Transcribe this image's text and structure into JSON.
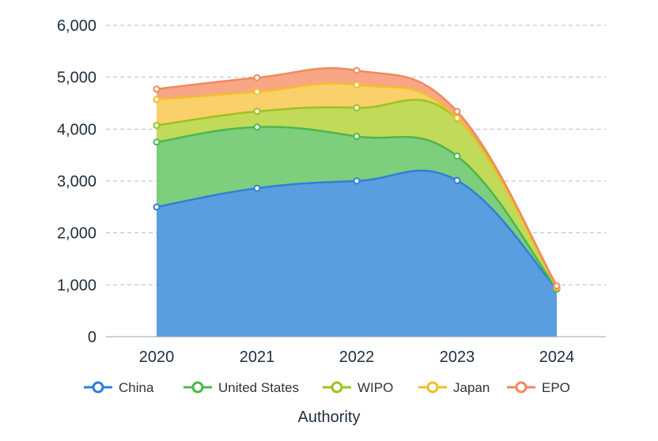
{
  "chart_data": {
    "type": "area",
    "stacked": true,
    "categories": [
      "2020",
      "2021",
      "2022",
      "2023",
      "2024"
    ],
    "series": [
      {
        "name": "China",
        "values": [
          2500,
          2860,
          3000,
          3010,
          920
        ]
      },
      {
        "name": "United States",
        "values": [
          1250,
          1180,
          860,
          470,
          0
        ]
      },
      {
        "name": "WIPO",
        "values": [
          320,
          300,
          550,
          720,
          20
        ]
      },
      {
        "name": "Japan",
        "values": [
          500,
          380,
          440,
          10,
          10
        ]
      },
      {
        "name": "EPO",
        "values": [
          200,
          270,
          280,
          130,
          30
        ]
      }
    ],
    "colors": {
      "China": {
        "line": "#2f7fd8",
        "fill": "#5a9ee0"
      },
      "United States": {
        "line": "#4cb84c",
        "fill": "#7dce7d"
      },
      "WIPO": {
        "line": "#9bc31f",
        "fill": "#c2da5a"
      },
      "Japan": {
        "line": "#f2bf2a",
        "fill": "#f9d06a"
      },
      "EPO": {
        "line": "#f08a5d",
        "fill": "#f8a685"
      }
    },
    "y_ticks": [
      "0",
      "1,000",
      "2,000",
      "3,000",
      "4,000",
      "5,000",
      "6,000"
    ],
    "ylim": [
      0,
      6000
    ],
    "xlabel": "Authority",
    "ylabel": "",
    "grid": true,
    "legend_position": "bottom"
  }
}
